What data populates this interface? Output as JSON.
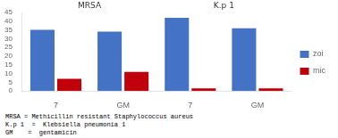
{
  "chart_data": {
    "type": "bar",
    "categories": [
      "7",
      "GM",
      "7",
      "GM"
    ],
    "series": [
      {
        "name": "zoi",
        "color": "#4472C4",
        "values": [
          35,
          34,
          42,
          36
        ]
      },
      {
        "name": "mic",
        "color": "#C0000B",
        "values": [
          7,
          11,
          1.5,
          1.5
        ]
      }
    ],
    "ylim": [
      0,
      45
    ],
    "yticks": [
      0,
      5,
      10,
      15,
      20,
      25,
      30,
      35,
      40,
      45
    ],
    "grid": false,
    "legend": "right",
    "annotations": [
      "MRSA",
      "K.p 1"
    ],
    "footnote": [
      "MRSA = Methicillin resistant Staphylococcus aureus",
      "K.p 1  =  Klebsiella pneumonia 1",
      "GM    =  gentamicin"
    ]
  }
}
